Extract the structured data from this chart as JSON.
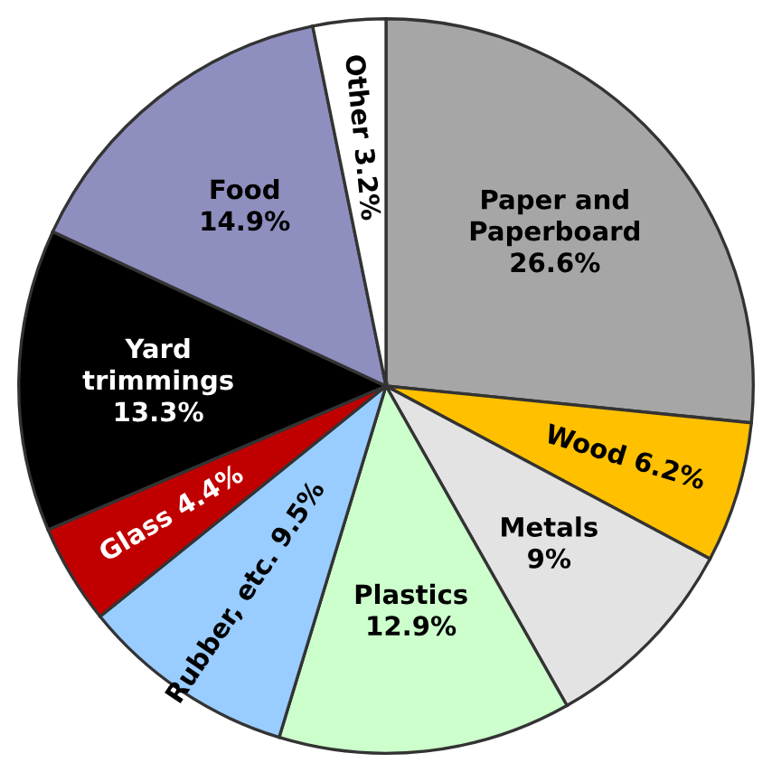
{
  "chart_data": {
    "type": "pie",
    "categories": [
      "Paper and\nPaperboard",
      "Wood",
      "Metals",
      "Plastics",
      "Rubber, etc.",
      "Glass",
      "Yard\ntrimmings",
      "Food",
      "Other"
    ],
    "values": [
      26.6,
      6.2,
      9,
      12.9,
      9.5,
      4.4,
      13.3,
      14.9,
      3.2
    ],
    "value_labels": [
      "26.6%",
      "6.2%",
      "9%",
      "12.9%",
      "9.5%",
      "4.4%",
      "13.3%",
      "14.9%",
      "3.2%"
    ],
    "colors": [
      "#a6a6a6",
      "#ffc000",
      "#e3e3e3",
      "#ccffcc",
      "#99ccff",
      "#c00000",
      "#000000",
      "#8e8ebf",
      "#ffffff"
    ]
  }
}
